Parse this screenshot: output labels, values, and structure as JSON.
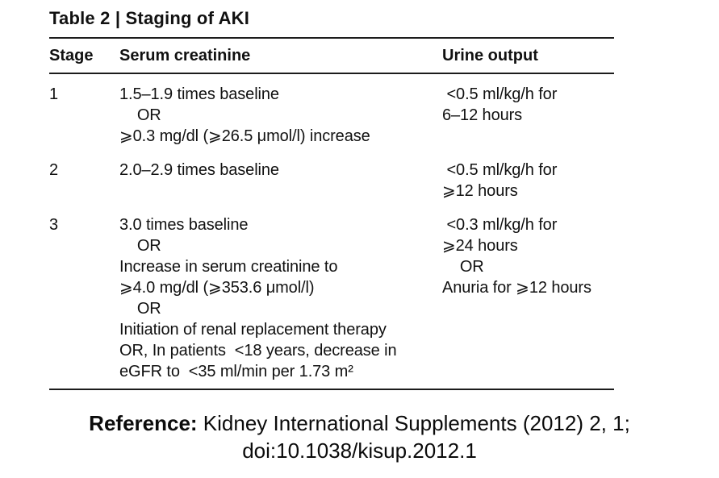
{
  "table": {
    "title": "Table 2 | Staging of AKI",
    "columns": [
      "Stage",
      "Serum creatinine",
      "Urine output"
    ],
    "rows": [
      {
        "stage": "1",
        "serum_creatinine": "1.5–1.9 times baseline\n    OR\n⩾0.3 mg/dl (⩾26.5 μmol/l) increase",
        "urine_output": " <0.5 ml/kg/h for\n6–12 hours"
      },
      {
        "stage": "2",
        "serum_creatinine": "2.0–2.9 times baseline",
        "urine_output": " <0.5 ml/kg/h for\n⩾12 hours"
      },
      {
        "stage": "3",
        "serum_creatinine": "3.0 times baseline\n    OR\nIncrease in serum creatinine to\n⩾4.0 mg/dl (⩾353.6 μmol/l)\n    OR\nInitiation of renal replacement therapy\nOR, In patients  <18 years, decrease in\neGFR to  <35 ml/min per 1.73 m²",
        "urine_output": " <0.3 ml/kg/h for\n⩾24 hours\n    OR\nAnuria for ⩾12 hours"
      }
    ]
  },
  "reference": {
    "label": "Reference:",
    "line1_rest": " Kidney International Supplements (2012) 2, 1;",
    "line2": "doi:10.1038/kisup.2012.1"
  },
  "colors": {
    "background": "#ffffff",
    "text": "#111111",
    "rule": "#1c1c1c"
  }
}
